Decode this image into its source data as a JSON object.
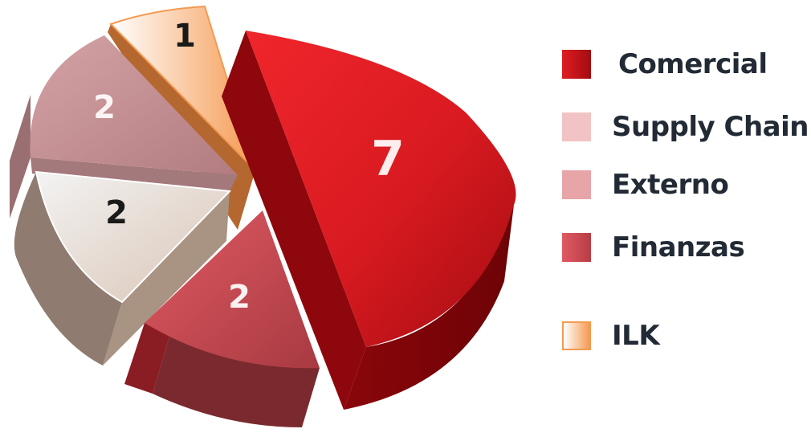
{
  "chart_data": {
    "type": "pie",
    "categories": [
      "Comercial",
      "Supply Chain",
      "Externo",
      "Finanzas",
      "ILK"
    ],
    "values": [
      7,
      2,
      2,
      2,
      1
    ],
    "colors": {
      "Comercial": "#c8161d",
      "Supply Chain": "#e7ddd6",
      "Externo": "#c98b91",
      "Finanzas": "#c3454e",
      "ILK": "#f3a465"
    },
    "legend": {
      "position": "right",
      "items": [
        {
          "label": "Comercial",
          "color": "#c8161d"
        },
        {
          "label": "Supply Chain",
          "color": "#f1c3c4"
        },
        {
          "label": "Externo",
          "color": "#e7a5a8"
        },
        {
          "label": "Finanzas",
          "color": "#cf4d55"
        },
        {
          "label": "ILK",
          "color": "#f7b27a"
        }
      ]
    },
    "data_labels": [
      "7",
      "2",
      "2",
      "2",
      "1"
    ]
  }
}
